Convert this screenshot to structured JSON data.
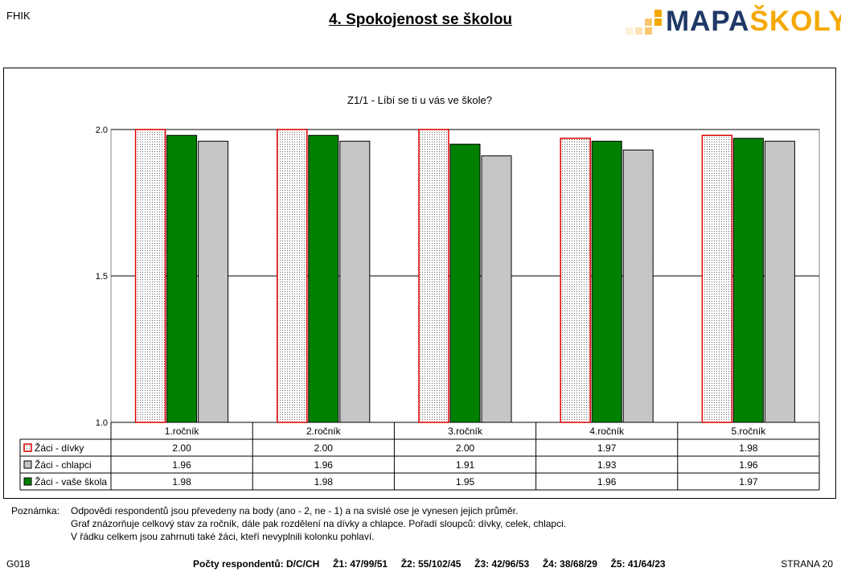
{
  "header": {
    "school_code": "FHIK",
    "title": "4. Spokojenost se školou",
    "logo": {
      "part1": "MAPA",
      "part2": "ŠKOLY"
    }
  },
  "chart_data": {
    "type": "bar",
    "title": "Z1/1 - Líbí se ti u vás ve škole?",
    "categories": [
      "1.ročník",
      "2.ročník",
      "3.ročník",
      "4.ročník",
      "5.ročník"
    ],
    "series": [
      {
        "name": "Žáci - dívky",
        "values": [
          2.0,
          2.0,
          2.0,
          1.97,
          1.98
        ],
        "color": "#ffffff",
        "border": "#e00000",
        "pattern": "dots"
      },
      {
        "name": "Žáci - chlapci",
        "values": [
          1.96,
          1.96,
          1.91,
          1.93,
          1.96
        ],
        "color": "#d4d4d4",
        "border": "#000000",
        "pattern": "checker"
      },
      {
        "name": "Žáci - vaše škola",
        "values": [
          1.98,
          1.98,
          1.95,
          1.96,
          1.97
        ],
        "color": "#008000",
        "border": "#000000",
        "pattern": "solid"
      }
    ],
    "bar_order": [
      0,
      2,
      1
    ],
    "table_values": [
      [
        "2.00",
        "2.00",
        "2.00",
        "1.97",
        "1.98"
      ],
      [
        "1.96",
        "1.96",
        "1.91",
        "1.93",
        "1.96"
      ],
      [
        "1.98",
        "1.98",
        "1.95",
        "1.96",
        "1.97"
      ]
    ],
    "ylim": [
      1.0,
      2.0
    ],
    "yticks": [
      "1.0",
      "1.5",
      "2.0"
    ],
    "grid": true
  },
  "note": {
    "label": "Poznámka:",
    "lines": [
      "Odpovědi respondentů jsou převedeny na body (ano - 2, ne - 1) a na svislé ose je vynesen jejich průměr.",
      "Graf znázorňuje celkový stav za ročník, dále pak rozdělení na dívky a chlapce. Pořadí sloupců: dívky, celek, chlapci.",
      "V řádku celkem jsou zahrnuti také žáci, kteří nevyplnili kolonku pohlaví."
    ]
  },
  "footer": {
    "code": "G018",
    "counts": "Počty respondentů: D/C/CH     Ž1: 47/99/51     Ž2: 55/102/45     Ž3: 42/96/53     Ž4: 38/68/29     Ž5: 41/64/23",
    "page": "STRANA 20"
  }
}
